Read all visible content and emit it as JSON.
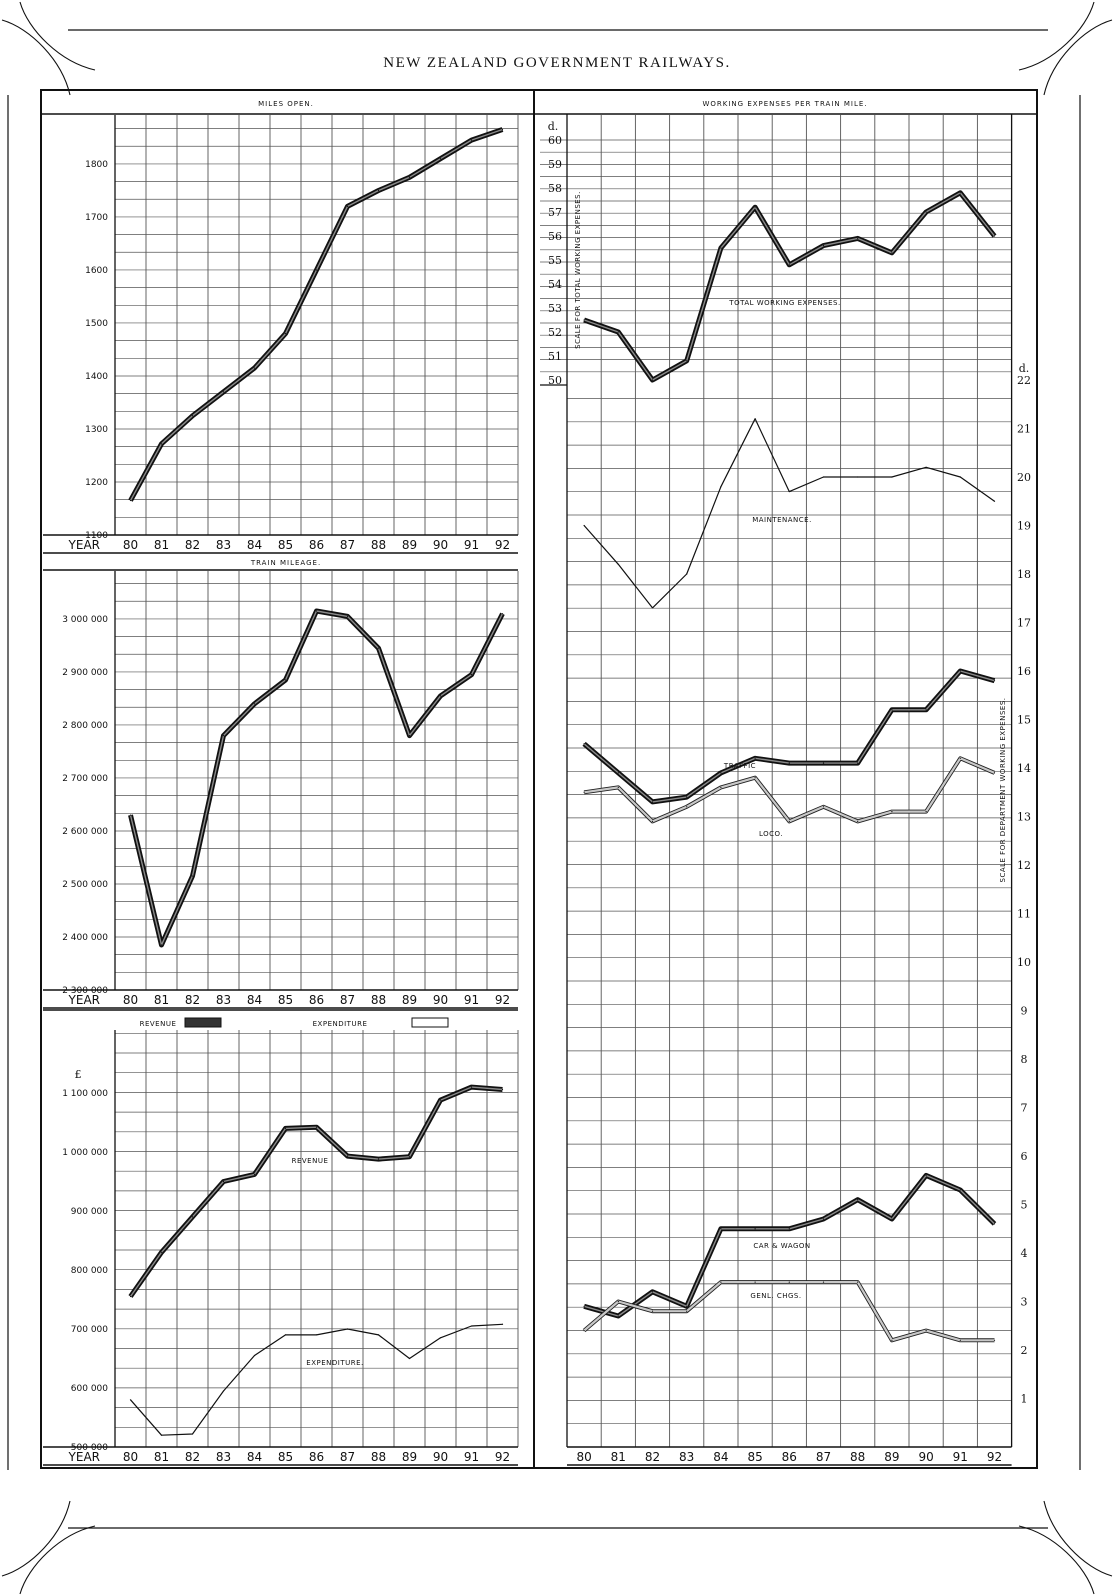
{
  "title": "NEW ZEALAND GOVERNMENT RAILWAYS.",
  "year_label": "YEAR",
  "year_ticks": [
    "80",
    "81",
    "82",
    "83",
    "84",
    "85",
    "86",
    "87",
    "88",
    "89",
    "90",
    "91",
    "92"
  ],
  "legend": {
    "revenue": "REVENUE",
    "expenditure": "EXPENDITURE"
  },
  "colors": {
    "ink": "#111111",
    "grid": "#555555",
    "paper": "#ffffff"
  },
  "chart_data": [
    {
      "id": "miles",
      "type": "line",
      "title": "MILES OPEN.",
      "xlabel": "YEAR",
      "categories": [
        "80",
        "81",
        "82",
        "83",
        "84",
        "85",
        "86",
        "87",
        "88",
        "89",
        "90",
        "91",
        "92"
      ],
      "ylim": [
        1100,
        1880
      ],
      "yticks": [
        1100,
        1200,
        1300,
        1400,
        1500,
        1600,
        1700,
        1800
      ],
      "ytick_labels": [
        "1100",
        "1200",
        "1300",
        "1400",
        "1500",
        "1600",
        "1700",
        "1800"
      ],
      "series": [
        {
          "values": [
            1165,
            1272,
            1325,
            1370,
            1415,
            1480,
            1600,
            1720,
            1750,
            1775,
            1810,
            1845,
            1865
          ]
        }
      ],
      "grid": true
    },
    {
      "id": "train",
      "type": "line",
      "title": "TRAIN MILEAGE.",
      "xlabel": "YEAR",
      "categories": [
        "80",
        "81",
        "82",
        "83",
        "84",
        "85",
        "86",
        "87",
        "88",
        "89",
        "90",
        "91",
        "92"
      ],
      "ylim": [
        2300000,
        3040000
      ],
      "yticks": [
        2300000,
        2400000,
        2500000,
        2600000,
        2700000,
        2800000,
        2900000,
        3000000
      ],
      "ytick_labels": [
        "2 300 000",
        "2 400 000",
        "2 500 000",
        "2 600 000",
        "2 700 000",
        "2 800 000",
        "2 900 000",
        "3 000 000"
      ],
      "series": [
        {
          "values": [
            2630000,
            2385000,
            2515000,
            2780000,
            2840000,
            2885000,
            3015000,
            3005000,
            2945000,
            2780000,
            2855000,
            2895000,
            3010000
          ]
        }
      ],
      "grid": true
    },
    {
      "id": "revexp",
      "type": "line",
      "xlabel": "YEAR",
      "unit": "£",
      "categories": [
        "80",
        "81",
        "82",
        "83",
        "84",
        "85",
        "86",
        "87",
        "88",
        "89",
        "90",
        "91",
        "92"
      ],
      "ylim": [
        500000,
        1140000
      ],
      "yticks": [
        500000,
        600000,
        700000,
        800000,
        900000,
        1000000,
        1100000
      ],
      "ytick_labels": [
        "500 000",
        "600 000",
        "700 000",
        "800 000",
        "900 000",
        "1 000 000",
        "1 100 000"
      ],
      "series": [
        {
          "name": "REVENUE",
          "label": "REVENUE",
          "style": "heavy",
          "values": [
            755000,
            830000,
            890000,
            950000,
            962000,
            1040000,
            1042000,
            993000,
            988000,
            992000,
            1088000,
            1110000,
            1106000
          ]
        },
        {
          "name": "EXPENDITURE",
          "label": "EXPENDITURE.",
          "style": "thin",
          "values": [
            580000,
            520000,
            522000,
            595000,
            655000,
            690000,
            690000,
            700000,
            690000,
            650000,
            685000,
            705000,
            708000
          ]
        }
      ],
      "grid": true
    },
    {
      "id": "workexp",
      "type": "line",
      "title": "WORKING EXPENSES PER TRAIN MILE.",
      "xlabel": "YEAR",
      "categories": [
        "80",
        "81",
        "82",
        "83",
        "84",
        "85",
        "86",
        "87",
        "88",
        "89",
        "90",
        "91",
        "92"
      ],
      "axes": {
        "left": {
          "label": "SCALE FOR TOTAL WORKING EXPENSES.",
          "unit": "d.",
          "ylim": [
            50,
            60
          ],
          "ticks": [
            50,
            51,
            52,
            53,
            54,
            55,
            56,
            57,
            58,
            59,
            60
          ]
        },
        "right": {
          "label": "SCALE FOR DEPARTMENT WORKING EXPENSES.",
          "unit": "d.",
          "ylim": [
            0,
            22
          ],
          "ticks": [
            1,
            2,
            3,
            4,
            5,
            6,
            7,
            8,
            9,
            10,
            11,
            12,
            13,
            14,
            15,
            16,
            17,
            18,
            19,
            20,
            21,
            22
          ]
        }
      },
      "series": [
        {
          "name": "TOTAL WORKING EXPENSES.",
          "axis": "left",
          "style": "heavy",
          "values": [
            52.5,
            52.0,
            50.0,
            50.8,
            55.5,
            57.2,
            54.8,
            55.6,
            55.9,
            55.3,
            57.0,
            57.8,
            56.0
          ]
        },
        {
          "name": "MAINTENANCE.",
          "axis": "right",
          "style": "thin",
          "values": [
            19.0,
            18.2,
            17.3,
            18.0,
            19.8,
            21.2,
            19.7,
            20.0,
            20.0,
            20.0,
            20.2,
            20.0,
            19.5
          ]
        },
        {
          "name": "TRAFFIC",
          "axis": "right",
          "style": "heavy",
          "values": [
            14.5,
            13.9,
            13.3,
            13.4,
            13.9,
            14.2,
            14.1,
            14.1,
            14.1,
            15.2,
            15.2,
            16.0,
            15.8
          ]
        },
        {
          "name": "LOCO.",
          "axis": "right",
          "style": "grey",
          "values": [
            13.5,
            13.6,
            12.9,
            13.2,
            13.6,
            13.8,
            12.9,
            13.2,
            12.9,
            13.1,
            13.1,
            14.2,
            13.9
          ]
        },
        {
          "name": "CAR & WAGON",
          "axis": "right",
          "style": "heavy",
          "values": [
            2.9,
            2.7,
            3.2,
            2.9,
            4.5,
            4.5,
            4.5,
            4.7,
            5.1,
            4.7,
            5.6,
            5.3,
            4.6
          ]
        },
        {
          "name": "GENL. CHGS.",
          "axis": "right",
          "style": "grey",
          "values": [
            2.4,
            3.0,
            2.8,
            2.8,
            3.4,
            3.4,
            3.4,
            3.4,
            3.4,
            2.2,
            2.4,
            2.2,
            2.2
          ]
        }
      ],
      "labels": {
        "traffic": "TRAFFIC"
      },
      "grid": true
    }
  ]
}
